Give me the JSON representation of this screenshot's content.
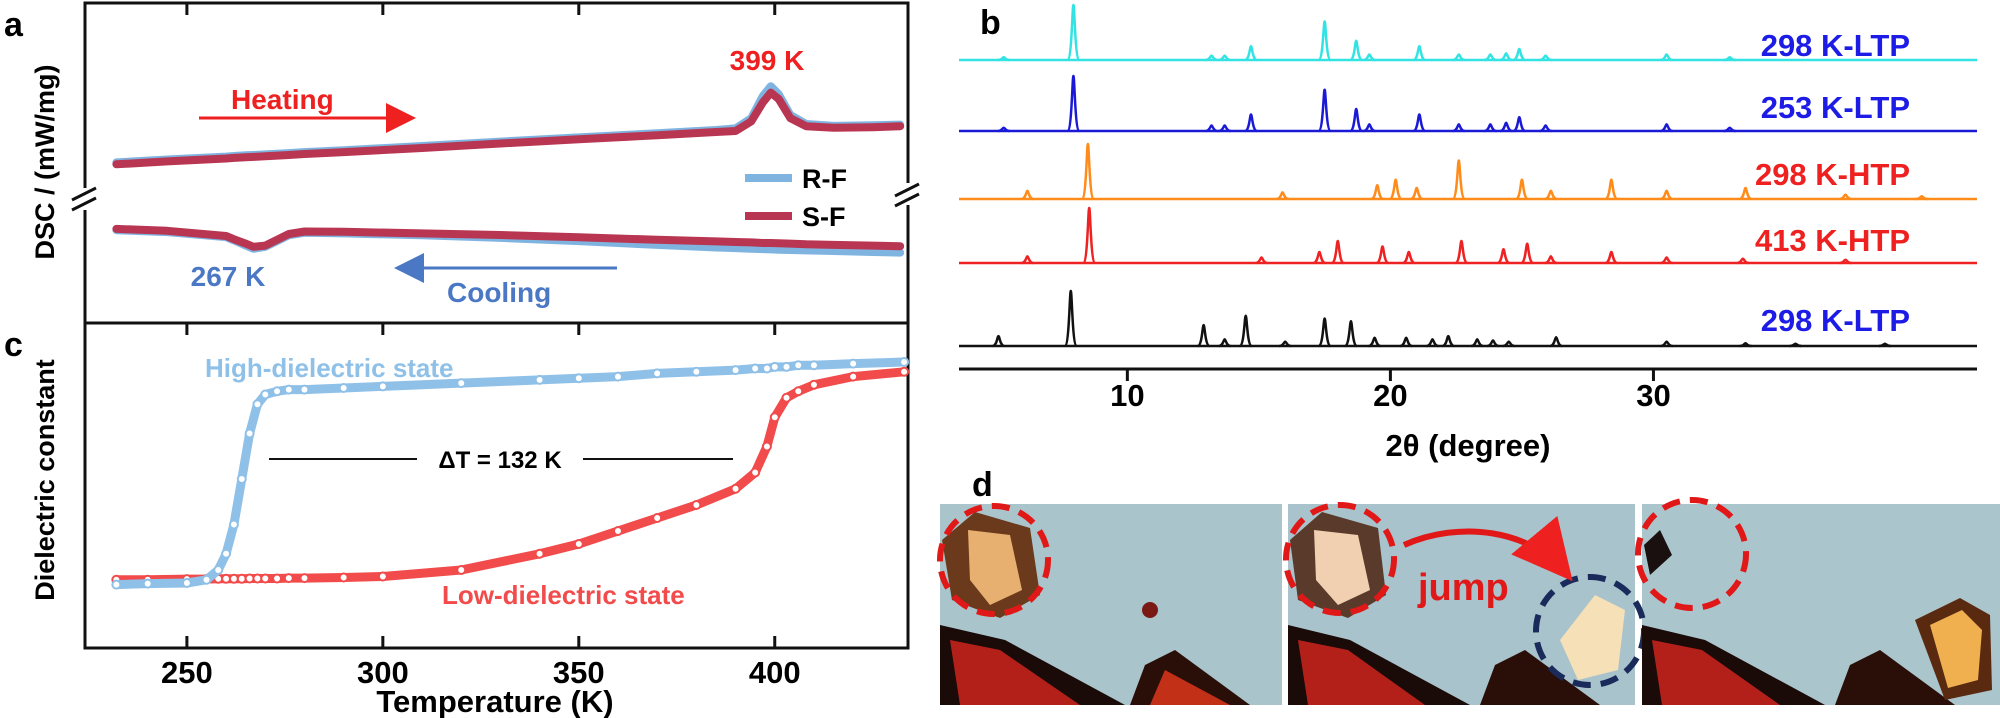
{
  "chart_data": [
    {
      "type": "line",
      "panel_label": "a",
      "y_label": "DSC / (mW/mg)",
      "xlim": [
        224,
        434
      ],
      "ylim": [
        0,
        10
      ],
      "x": [
        232,
        245,
        260,
        262,
        265,
        267,
        270,
        273,
        276,
        280,
        290,
        310,
        330,
        350,
        370,
        385,
        390,
        394,
        397,
        399,
        401,
        404,
        408,
        415,
        425,
        432
      ],
      "series": [
        {
          "name": "R-F",
          "color": "#80b4e0",
          "heating": [
            5.02,
            5.11,
            5.2,
            5.22,
            5.24,
            5.25,
            5.27,
            5.29,
            5.31,
            5.34,
            5.4,
            5.53,
            5.67,
            5.8,
            5.93,
            6.03,
            6.08,
            6.4,
            7.1,
            7.4,
            7.15,
            6.5,
            6.22,
            6.16,
            6.18,
            6.2
          ],
          "cooling": [
            2.9,
            2.84,
            2.68,
            2.58,
            2.42,
            2.32,
            2.38,
            2.56,
            2.74,
            2.82,
            2.8,
            2.74,
            2.66,
            2.56,
            2.44,
            2.36,
            2.34,
            2.32,
            2.31,
            2.3,
            2.29,
            2.28,
            2.27,
            2.25,
            2.22,
            2.2
          ]
        },
        {
          "name": "S-F",
          "color": "#b83652",
          "heating": [
            4.96,
            5.05,
            5.14,
            5.16,
            5.18,
            5.19,
            5.21,
            5.23,
            5.25,
            5.28,
            5.34,
            5.47,
            5.61,
            5.74,
            5.87,
            5.97,
            6.0,
            6.3,
            6.9,
            7.2,
            7.0,
            6.4,
            6.15,
            6.1,
            6.12,
            6.15
          ],
          "cooling": [
            2.94,
            2.88,
            2.72,
            2.62,
            2.48,
            2.38,
            2.42,
            2.6,
            2.78,
            2.86,
            2.85,
            2.8,
            2.75,
            2.68,
            2.6,
            2.55,
            2.53,
            2.52,
            2.5,
            2.5,
            2.49,
            2.48,
            2.46,
            2.44,
            2.42,
            2.4
          ]
        }
      ],
      "annotations": {
        "heating_peak": "399 K",
        "cooling_peak": "267 K",
        "heating": "Heating",
        "cooling": "Cooling"
      }
    },
    {
      "type": "spectrum",
      "panel_label": "b",
      "x_label": "2θ (degree)",
      "xlim": [
        3.6,
        42.3
      ],
      "xticks": [
        10,
        20,
        30
      ],
      "ylim": [
        0,
        100
      ],
      "series": [
        {
          "name": "298 K-LTP",
          "color": "#33e3e3",
          "label_color": "#1c1ce6",
          "x": [
            5.3,
            7.95,
            13.2,
            13.7,
            14.7,
            17.5,
            18.7,
            19.2,
            21.1,
            22.6,
            23.8,
            24.4,
            24.9,
            25.9,
            30.5,
            32.9
          ],
          "values": [
            5,
            100,
            8,
            8,
            25,
            70,
            35,
            10,
            25,
            10,
            10,
            12,
            20,
            8,
            10,
            5
          ]
        },
        {
          "name": "253 K-LTP",
          "color": "#1a1ad6",
          "label_color": "#1c1ce6",
          "x": [
            5.3,
            7.95,
            13.2,
            13.7,
            14.7,
            17.5,
            18.7,
            19.2,
            21.1,
            22.6,
            23.8,
            24.4,
            24.9,
            25.9,
            30.5,
            32.9
          ],
          "values": [
            6,
            100,
            10,
            10,
            30,
            75,
            40,
            12,
            30,
            12,
            12,
            15,
            25,
            10,
            12,
            6
          ]
        },
        {
          "name": "298 K-HTP",
          "color": "#ff8c1a",
          "label_color": "#ee2020",
          "x": [
            6.2,
            8.5,
            15.9,
            19.5,
            20.2,
            21.0,
            22.6,
            25.0,
            26.1,
            28.4,
            30.5,
            33.5,
            37.3,
            40.2
          ],
          "values": [
            15,
            100,
            12,
            25,
            35,
            20,
            70,
            35,
            15,
            35,
            15,
            20,
            8,
            5
          ]
        },
        {
          "name": "413 K-HTP",
          "color": "#ee2222",
          "label_color": "#ee2020",
          "x": [
            6.2,
            8.55,
            15.1,
            17.3,
            18.0,
            19.7,
            20.7,
            22.7,
            24.3,
            25.2,
            26.1,
            28.4,
            30.5,
            33.4,
            37.3
          ],
          "values": [
            12,
            100,
            10,
            20,
            40,
            30,
            20,
            40,
            25,
            35,
            12,
            20,
            10,
            8,
            6
          ]
        },
        {
          "name": "298 K-LTP",
          "color": "#111111",
          "label_color": "#1c1ce6",
          "x": [
            5.1,
            7.85,
            12.9,
            13.7,
            14.5,
            16.0,
            17.5,
            18.5,
            19.4,
            20.6,
            21.6,
            22.2,
            23.3,
            23.9,
            24.5,
            26.3,
            30.5,
            33.5,
            35.4,
            38.8
          ],
          "values": [
            18,
            100,
            38,
            12,
            55,
            8,
            50,
            45,
            15,
            15,
            12,
            18,
            12,
            10,
            8,
            16,
            8,
            5,
            4,
            4
          ]
        }
      ]
    },
    {
      "type": "scatter",
      "panel_label": "c",
      "x_label": "Temperature (K)",
      "y_label": "Dielectric constant",
      "xlim": [
        224,
        434
      ],
      "xticks": [
        250,
        300,
        350,
        400
      ],
      "ylim": [
        0,
        10
      ],
      "x": [
        232,
        240,
        250,
        255,
        258,
        260,
        262,
        264,
        266,
        268,
        270,
        273,
        276,
        280,
        290,
        300,
        320,
        340,
        350,
        360,
        370,
        380,
        390,
        395,
        398,
        400,
        403,
        406,
        410,
        420,
        433
      ],
      "series": [
        {
          "color": "#f24b4b",
          "values": [
            2.1,
            2.1,
            2.12,
            2.12,
            2.13,
            2.13,
            2.13,
            2.13,
            2.14,
            2.14,
            2.14,
            2.14,
            2.15,
            2.15,
            2.17,
            2.2,
            2.4,
            2.9,
            3.2,
            3.6,
            4.0,
            4.4,
            4.9,
            5.4,
            6.2,
            7.1,
            7.7,
            7.9,
            8.1,
            8.35,
            8.5
          ]
        },
        {
          "color": "#8fc0e8",
          "values": [
            1.95,
            1.98,
            2.0,
            2.1,
            2.4,
            2.9,
            3.8,
            5.2,
            6.6,
            7.5,
            7.8,
            7.9,
            7.95,
            7.95,
            8.0,
            8.05,
            8.15,
            8.25,
            8.3,
            8.35,
            8.45,
            8.5,
            8.55,
            8.6,
            8.6,
            8.65,
            8.65,
            8.7,
            8.7,
            8.75,
            8.8
          ]
        }
      ],
      "annotations": {
        "high": "High-dielectric state",
        "low": "Low-dielectric state",
        "delta": "ΔT = 132 K"
      }
    }
  ],
  "photo_panel": {
    "panel_label": "d",
    "annotation": "jump"
  }
}
